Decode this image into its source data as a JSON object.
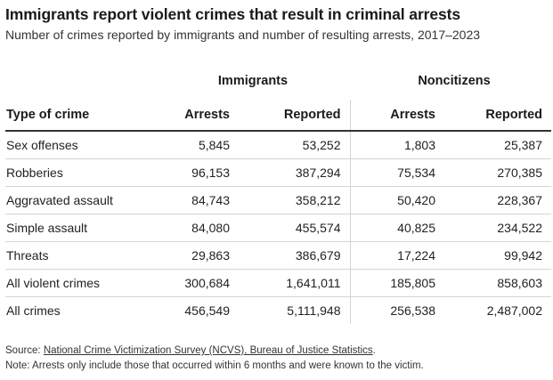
{
  "title": "Immigrants report violent crimes that result in criminal arrests",
  "subtitle": "Number of crimes reported by immigrants and number of resulting arrests, 2017–2023",
  "chart_data": {
    "type": "table",
    "group_headers": [
      "Immigrants",
      "Noncitizens"
    ],
    "columns": [
      "Type of crime",
      "Arrests",
      "Reported",
      "Arrests",
      "Reported"
    ],
    "rows": [
      [
        "Sex offenses",
        "5,845",
        "53,252",
        "1,803",
        "25,387"
      ],
      [
        "Robberies",
        "96,153",
        "387,294",
        "75,534",
        "270,385"
      ],
      [
        "Aggravated assault",
        "84,743",
        "358,212",
        "50,420",
        "228,367"
      ],
      [
        "Simple assault",
        "84,080",
        "455,574",
        "40,825",
        "234,522"
      ],
      [
        "Threats",
        "29,863",
        "386,679",
        "17,224",
        "99,942"
      ],
      [
        "All violent crimes",
        "300,684",
        "1,641,011",
        "185,805",
        "858,603"
      ],
      [
        "All crimes",
        "456,549",
        "5,111,948",
        "256,538",
        "2,487,002"
      ]
    ]
  },
  "source": {
    "prefix": "Source: ",
    "link_text": "National Crime Victimization Survey (NCVS), Bureau of Justice Statistics",
    "suffix": "."
  },
  "note": "Note: Arrests only include those that occurred within 6 months and were known to the victim.",
  "colors": {
    "text": "#222222",
    "rule": "#333333",
    "row_divider": "#d4d4d4"
  }
}
